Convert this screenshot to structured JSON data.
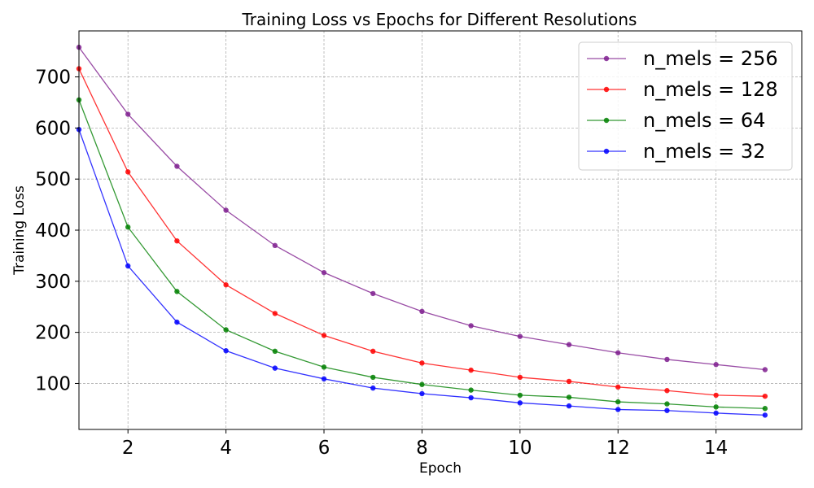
{
  "chart_data": {
    "type": "line",
    "title": "Training Loss vs Epochs for Different Resolutions",
    "xlabel": "Epoch",
    "ylabel": "Training Loss",
    "xlim": [
      1,
      15.75
    ],
    "ylim": [
      10,
      790
    ],
    "x_ticks": [
      2,
      4,
      6,
      8,
      10,
      12,
      14
    ],
    "y_ticks": [
      100,
      200,
      300,
      400,
      500,
      600,
      700
    ],
    "grid": true,
    "legend_position": "top-right",
    "x": [
      1,
      2,
      3,
      4,
      5,
      6,
      7,
      8,
      9,
      10,
      11,
      12,
      13,
      14,
      15
    ],
    "series": [
      {
        "name": "n_mels = 256",
        "color": "#7f1f8f",
        "values": [
          758,
          627,
          525,
          439,
          370,
          317,
          276,
          241,
          213,
          192,
          176,
          160,
          147,
          137,
          127
        ]
      },
      {
        "name": "n_mels = 128",
        "color": "#ff0000",
        "values": [
          716,
          514,
          379,
          293,
          237,
          194,
          163,
          140,
          126,
          112,
          104,
          93,
          86,
          77,
          75
        ]
      },
      {
        "name": "n_mels = 64",
        "color": "#008000",
        "values": [
          655,
          406,
          280,
          205,
          163,
          132,
          112,
          98,
          87,
          77,
          73,
          64,
          60,
          54,
          51
        ]
      },
      {
        "name": "n_mels = 32",
        "color": "#0000ff",
        "values": [
          597,
          330,
          220,
          164,
          130,
          109,
          91,
          80,
          72,
          62,
          56,
          49,
          47,
          42,
          38
        ]
      }
    ]
  }
}
